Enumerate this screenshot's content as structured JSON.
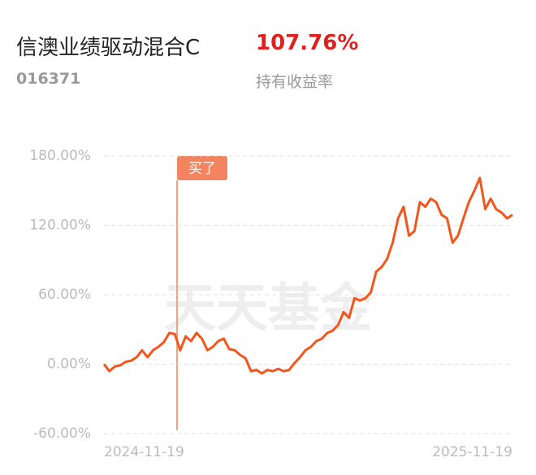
{
  "header": {
    "title": "信澳业绩驱动混合C",
    "return": "107.76%",
    "code": "016371",
    "return_label": "持有收益率"
  },
  "chart_data": {
    "type": "line",
    "watermark": "天天基金",
    "annotation": "买了",
    "categories": [
      "2024-11-19",
      null,
      null,
      null,
      null,
      null,
      null,
      null,
      null,
      null,
      null,
      null,
      null,
      null,
      null,
      null,
      null,
      null,
      null,
      null,
      null,
      null,
      null,
      null,
      null,
      null,
      null,
      null,
      null,
      null,
      null,
      null,
      null,
      null,
      null,
      null,
      null,
      null,
      null,
      null,
      null,
      null,
      null,
      null,
      null,
      null,
      null,
      null,
      null,
      null,
      null,
      null,
      null,
      null,
      null,
      null,
      null,
      null,
      null,
      null,
      null,
      null,
      null,
      null,
      null,
      null,
      null,
      null,
      null,
      null,
      null,
      null,
      null,
      null,
      null,
      "2025-11-19"
    ],
    "series": [
      {
        "color": "#f2561d",
        "values": [
          0,
          -6,
          -2,
          -1,
          2,
          3,
          6,
          12,
          6,
          12,
          15,
          19,
          27,
          26,
          12,
          24,
          20,
          27,
          22,
          12,
          15,
          20,
          22,
          13,
          12,
          8,
          5,
          -6,
          -5,
          -8,
          -5,
          -6,
          -4,
          -6,
          -5,
          1,
          6,
          12,
          15,
          20,
          22,
          27,
          29,
          34,
          45,
          40,
          57,
          55,
          57,
          62,
          80,
          84,
          91,
          105,
          126,
          136,
          111,
          115,
          140,
          136,
          143,
          140,
          129,
          126,
          105,
          111,
          126,
          140,
          150,
          161,
          134,
          143,
          134,
          131,
          126,
          129
        ]
      }
    ],
    "ylim": [
      -60,
      180
    ],
    "yticks": [
      {
        "value": -60,
        "label": "-60.00%"
      },
      {
        "value": 0,
        "label": "0.00%"
      },
      {
        "value": 60,
        "label": "60.00%"
      },
      {
        "value": 120,
        "label": "120.00%"
      },
      {
        "value": 180,
        "label": "180.00%"
      }
    ],
    "grid": true
  }
}
